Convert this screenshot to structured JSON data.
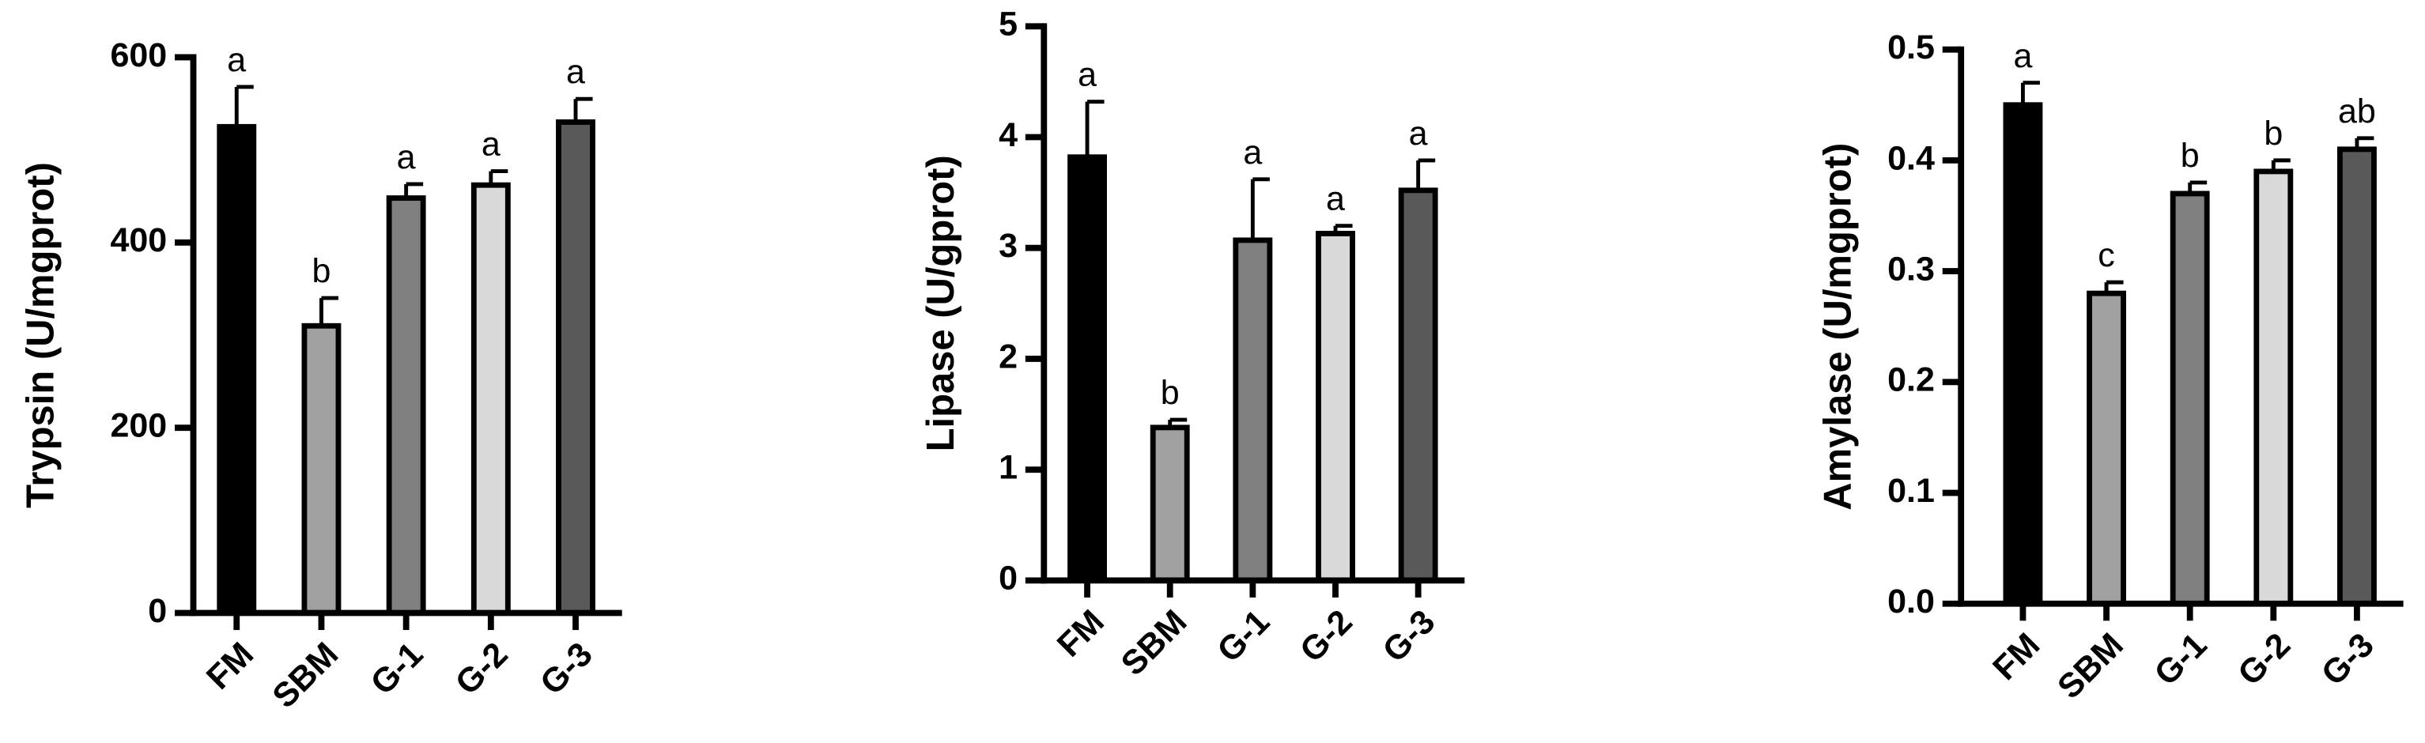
{
  "chart_data": [
    {
      "type": "bar",
      "y_label": "Trypsin (U/mgprot)",
      "categories": [
        "FM",
        "SBM",
        "G-1",
        "G-2",
        "G-3"
      ],
      "values": [
        525,
        310,
        448,
        462,
        530
      ],
      "errors": [
        43,
        30,
        15,
        15,
        25
      ],
      "annotations": [
        "a",
        "b",
        "a",
        "a",
        "a"
      ],
      "colors": [
        "#000000",
        "#a0a0a0",
        "#808080",
        "#d9d9d9",
        "#595959"
      ],
      "ylim": [
        0,
        600
      ],
      "yticks": [
        0,
        200,
        400,
        600
      ]
    },
    {
      "type": "bar",
      "y_label": "Lipase (U/gprot)",
      "categories": [
        "FM",
        "SBM",
        "G-1",
        "G-2",
        "G-3"
      ],
      "values": [
        3.82,
        1.38,
        3.07,
        3.13,
        3.52
      ],
      "errors": [
        0.5,
        0.07,
        0.55,
        0.07,
        0.27
      ],
      "annotations": [
        "a",
        "b",
        "a",
        "a",
        "a"
      ],
      "colors": [
        "#000000",
        "#a0a0a0",
        "#808080",
        "#d9d9d9",
        "#595959"
      ],
      "ylim": [
        0,
        5
      ],
      "yticks": [
        0,
        1,
        2,
        3,
        4,
        5
      ]
    },
    {
      "type": "bar",
      "y_label": "Amylase (U/mgprot)",
      "categories": [
        "FM",
        "SBM",
        "G-1",
        "G-2",
        "G-3"
      ],
      "values": [
        0.45,
        0.28,
        0.37,
        0.39,
        0.41
      ],
      "errors": [
        0.02,
        0.01,
        0.01,
        0.01,
        0.01
      ],
      "annotations": [
        "a",
        "c",
        "b",
        "b",
        "ab"
      ],
      "colors": [
        "#000000",
        "#a0a0a0",
        "#808080",
        "#d9d9d9",
        "#595959"
      ],
      "ylim": [
        0,
        0.5
      ],
      "yticks": [
        {
          "value": 0,
          "label": "0.0"
        },
        0.1,
        0.2,
        0.3,
        0.4,
        0.5
      ]
    }
  ]
}
